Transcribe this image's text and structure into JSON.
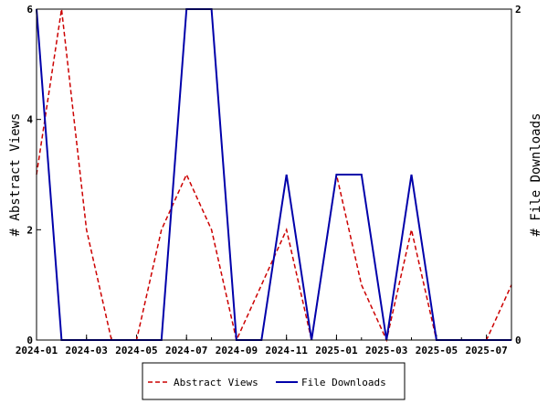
{
  "chart_data": {
    "type": "line",
    "x_axis": {
      "type": "date",
      "range": [
        "2024-01",
        "2025-08"
      ],
      "ticks": [
        "2024-01",
        "2024-03",
        "2024-05",
        "2024-07",
        "2024-09",
        "2024-11",
        "2025-01",
        "2025-03",
        "2025-05",
        "2025-07"
      ]
    },
    "y_left": {
      "label": "# Abstract Views",
      "range": [
        0,
        6
      ],
      "ticks": [
        "0",
        "2",
        "4",
        "6"
      ]
    },
    "y_right": {
      "label": "# File Downloads",
      "range": [
        0,
        2
      ],
      "ticks": [
        "0",
        "2"
      ]
    },
    "grid": false,
    "legend_position": "bottom-center",
    "series": [
      {
        "name": "Abstract Views",
        "axis": "left",
        "color": "#cc0000",
        "style": "dashed",
        "points": [
          [
            "2024-01",
            3
          ],
          [
            "2024-02",
            6
          ],
          [
            "2024-03",
            2
          ],
          [
            "2024-04",
            0
          ],
          [
            "2024-05",
            0
          ],
          [
            "2024-06",
            2
          ],
          [
            "2024-07",
            3
          ],
          [
            "2024-08",
            2
          ],
          [
            "2024-09",
            0
          ],
          [
            "2024-10",
            1
          ],
          [
            "2024-11",
            2
          ],
          [
            "2024-12",
            0
          ],
          [
            "2025-01",
            3
          ],
          [
            "2025-02",
            1
          ],
          [
            "2025-03",
            0
          ],
          [
            "2025-04",
            2
          ],
          [
            "2025-05",
            0
          ],
          [
            "2025-06",
            0
          ],
          [
            "2025-07",
            0
          ],
          [
            "2025-08",
            1
          ]
        ]
      },
      {
        "name": "File Downloads",
        "axis": "right",
        "color": "#0000aa",
        "style": "solid",
        "points": [
          [
            "2024-01",
            2
          ],
          [
            "2024-02",
            0
          ],
          [
            "2024-03",
            0
          ],
          [
            "2024-04",
            0
          ],
          [
            "2024-05",
            0
          ],
          [
            "2024-06",
            0
          ],
          [
            "2024-07",
            2
          ],
          [
            "2024-08",
            2
          ],
          [
            "2024-09",
            0
          ],
          [
            "2024-10",
            0
          ],
          [
            "2024-11",
            1
          ],
          [
            "2024-12",
            0
          ],
          [
            "2025-01",
            1
          ],
          [
            "2025-02",
            1
          ],
          [
            "2025-03",
            0
          ],
          [
            "2025-04",
            1
          ],
          [
            "2025-05",
            0
          ],
          [
            "2025-06",
            0
          ],
          [
            "2025-07",
            0
          ],
          [
            "2025-08",
            0
          ]
        ]
      }
    ]
  }
}
